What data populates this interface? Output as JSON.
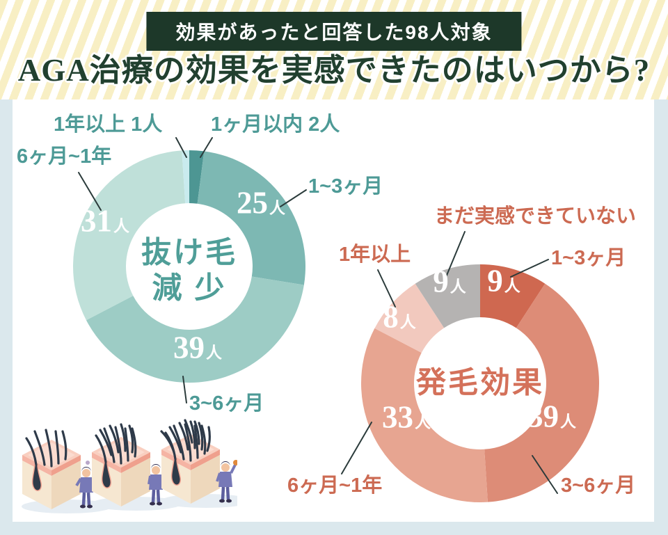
{
  "page": {
    "badge": "効果があったと回答した98人対象",
    "title": "AGA治療の効果を実感できたのはいつから?"
  },
  "colors": {
    "frame_bg": "#dbe8ed",
    "panel_bg": "#ffffff",
    "stripe_cream": "#f8efc4",
    "stripe_white": "#ffffff",
    "badge_bg": "#1d3829",
    "badge_text": "#ffffff",
    "title_text": "#21402f",
    "teal_label": "#4d9a96",
    "salmon_label": "#cc6a52",
    "center_teal": "#4f9e98",
    "center_salmon": "#d4715a",
    "value_text": "#ffffff",
    "leader_line": "#2b3b3b"
  },
  "chart_data": [
    {
      "type": "pie",
      "variant": "donut",
      "title": "抜け毛減少",
      "center_lines": [
        "抜け毛",
        "減 少"
      ],
      "unit": "人",
      "total": 98,
      "legend_position": "callouts",
      "start_angle_deg": 0,
      "direction": "clockwise",
      "segments": [
        {
          "label": "1ヶ月以内",
          "value": 2,
          "color": "#4d9693",
          "callout": "1ヶ月以内 2人"
        },
        {
          "label": "1~3ヶ月",
          "value": 25,
          "color": "#7db8b3",
          "callout": "1~3ヶ月"
        },
        {
          "label": "3~6ヶ月",
          "value": 39,
          "color": "#9dccc5",
          "callout": "3~6ヶ月"
        },
        {
          "label": "6ヶ月~1年",
          "value": 31,
          "color": "#bfe0d9",
          "callout": "6ヶ月~1年"
        },
        {
          "label": "1年以上",
          "value": 1,
          "color": "#c9ebee",
          "callout": "1年以上 1人"
        }
      ]
    },
    {
      "type": "pie",
      "variant": "donut",
      "title": "発毛効果",
      "center_lines": [
        "発毛効果"
      ],
      "unit": "人",
      "total": 98,
      "legend_position": "callouts",
      "start_angle_deg": 0,
      "direction": "clockwise",
      "segments": [
        {
          "label": "1~3ヶ月",
          "value": 9,
          "color": "#cf6850",
          "callout": "1~3ヶ月"
        },
        {
          "label": "3~6ヶ月",
          "value": 39,
          "color": "#dd8c77",
          "callout": "3~6ヶ月"
        },
        {
          "label": "6ヶ月~1年",
          "value": 33,
          "color": "#e7a591",
          "callout": "6ヶ月~1年"
        },
        {
          "label": "1年以上",
          "value": 8,
          "color": "#f2c9be",
          "callout": "1年以上"
        },
        {
          "label": "まだ実感できていない",
          "value": 9,
          "color": "#b5b3b2",
          "callout": "まだ実感できていない"
        }
      ]
    }
  ]
}
